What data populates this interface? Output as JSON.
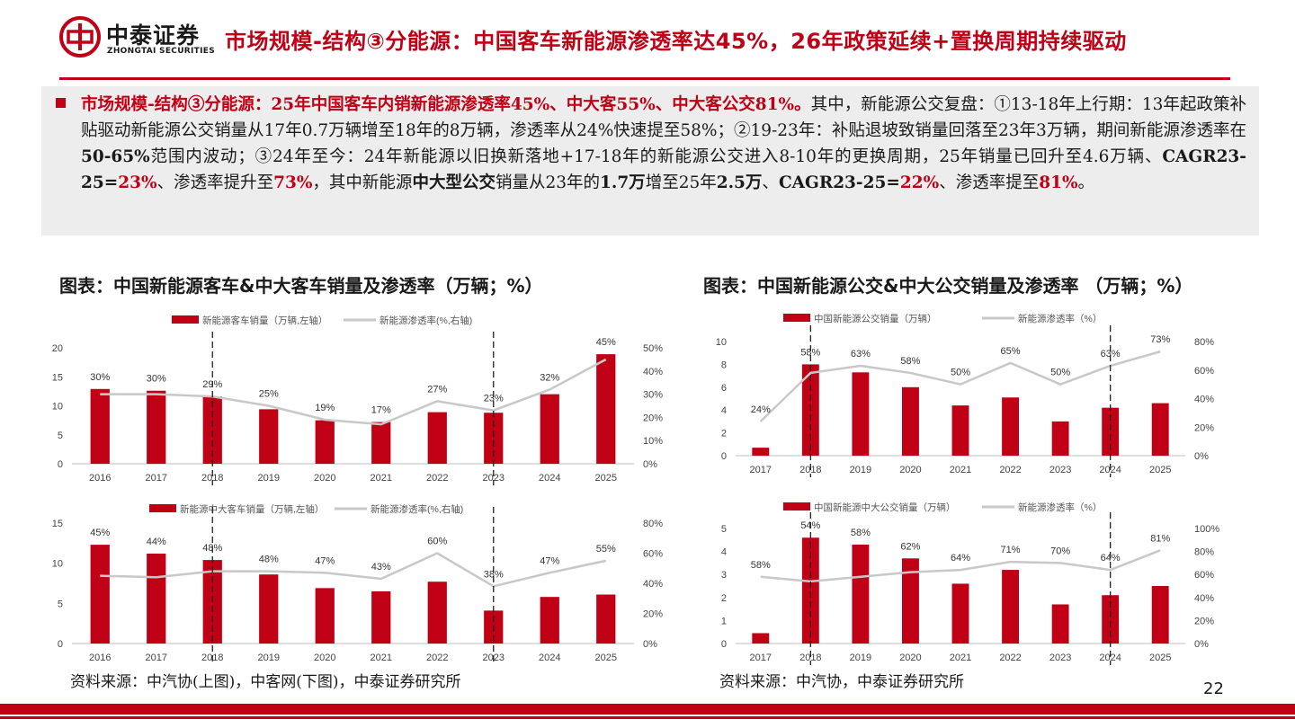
{
  "header": {
    "logo_cn": "中泰证券",
    "logo_en": "ZHONGTAI SECURITIES",
    "title": "市场规模-结构③分能源：中国客车新能源渗透率达45%，26年政策延续+置换周期持续驱动",
    "page_number": "22"
  },
  "summary": {
    "t1": "市场规模-结构③分能源：25年中国客车内销新能源渗透率45%、中大客55%、中大客公交81%。",
    "t2": "其中，新能源公交复盘：①13-18年上行期：13年起政策补贴驱动新能源公交销量从17年0.7万辆增至18年的8万辆，渗透率从24%快速提至58%；②19-23年：补贴退坡致销量回落至23年3万辆，期间新能源渗透率在",
    "t3": "50-65%",
    "t4": "范围内波动；③24年至今：24年新能源以旧换新落地+17-18年的新能源公交进入8-10年的更换周期，25年销量已回升至4.6万辆、",
    "t5": "CAGR23-25=",
    "t6": "23%",
    "t7": "、渗透率提升至",
    "t8": "73%",
    "t9": "，其中新能源",
    "t10": "中大型公交",
    "t11": "销量从23年的",
    "t12": "1.7万",
    "t13": "增至25年",
    "t14": "2.5万",
    "t15": "、",
    "t16": "CAGR23-25=",
    "t17": "22%",
    "t18": "、渗透率提至",
    "t19": "81%",
    "t20": "。"
  },
  "left_figure_title": "图表：中国新能源客车&中大客车销量及渗透率（万辆；%）",
  "right_figure_title": "图表：中国新能源公交&中大公交销量及渗透率 （万辆；%）",
  "left_source": "资料来源：中汽协(上图)，中客网(下图)，中泰证券研究所",
  "right_source": "资料来源：中汽协，中泰证券研究所",
  "colors": {
    "bar": "#c00015",
    "line": "#c8c8c8",
    "accent": "#c00015"
  },
  "chart_data": [
    {
      "type": "bar",
      "categories": [
        "2016",
        "2017",
        "2018",
        "2019",
        "2020",
        "2021",
        "2022",
        "2023",
        "2024",
        "2025"
      ],
      "series": [
        {
          "name": "新能源客车销量（万辆,左轴）",
          "kind": "bar",
          "values": [
            12.9,
            12.6,
            11.6,
            9.4,
            7.5,
            7.2,
            8.9,
            8.8,
            12.0,
            18.9
          ]
        },
        {
          "name": "新能源渗透率(%,右轴)",
          "kind": "line",
          "values": [
            30,
            30,
            29,
            25,
            19,
            17,
            27,
            23,
            32,
            45
          ]
        }
      ],
      "data_labels": [
        "30%",
        "30%",
        "29%",
        "25%",
        "19%",
        "17%",
        "27%",
        "23%",
        "32%",
        "45%"
      ],
      "ylim": [
        0,
        20
      ],
      "y_ticks": [
        0,
        5,
        10,
        15,
        20
      ],
      "y2lim": [
        0,
        50
      ],
      "y2_ticks": [
        "0%",
        "10%",
        "20%",
        "30%",
        "40%",
        "50%"
      ],
      "grid": false,
      "legend": "top"
    },
    {
      "type": "bar",
      "categories": [
        "2016",
        "2017",
        "2018",
        "2019",
        "2020",
        "2021",
        "2022",
        "2023",
        "2024",
        "2025"
      ],
      "series": [
        {
          "name": "新能源中大客车销量（万辆,左轴）",
          "kind": "bar",
          "values": [
            12.3,
            11.2,
            10.4,
            8.6,
            6.9,
            6.5,
            7.7,
            4.1,
            5.8,
            6.1
          ]
        },
        {
          "name": "新能源渗透率(%,右轴)",
          "kind": "line",
          "values": [
            45,
            44,
            48,
            48,
            47,
            43,
            60,
            38,
            47,
            55
          ]
        }
      ],
      "data_labels": [
        "45%",
        "44%",
        "48%",
        "48%",
        "47%",
        "43%",
        "60%",
        "38%",
        "47%",
        "55%"
      ],
      "ylim": [
        0,
        15
      ],
      "y_ticks": [
        0,
        5,
        10,
        15
      ],
      "y2lim": [
        0,
        80
      ],
      "y2_ticks": [
        "0%",
        "20%",
        "40%",
        "60%",
        "80%"
      ],
      "grid": false,
      "legend": "top"
    },
    {
      "type": "bar",
      "categories": [
        "2017",
        "2018",
        "2019",
        "2020",
        "2021",
        "2022",
        "2023",
        "2024",
        "2025"
      ],
      "series": [
        {
          "name": "中国新能源公交销量（万辆）",
          "kind": "bar",
          "values": [
            0.7,
            8.0,
            7.3,
            6.0,
            4.4,
            5.1,
            3.0,
            4.2,
            4.6
          ]
        },
        {
          "name": "新能源渗透率（%）",
          "kind": "line",
          "values": [
            24,
            58,
            63,
            58,
            50,
            65,
            50,
            63,
            73
          ]
        }
      ],
      "data_labels": [
        "24%",
        "58%",
        "63%",
        "58%",
        "50%",
        "65%",
        "50%",
        "63%",
        "73%"
      ],
      "ylim": [
        0,
        10
      ],
      "y_ticks": [
        0,
        2,
        4,
        6,
        8,
        10
      ],
      "y2lim": [
        0,
        80
      ],
      "y2_ticks": [
        "0%",
        "20%",
        "40%",
        "60%",
        "80%"
      ],
      "grid": false,
      "legend": "top"
    },
    {
      "type": "bar",
      "categories": [
        "2017",
        "2018",
        "2019",
        "2020",
        "2021",
        "2022",
        "2023",
        "2024",
        "2025"
      ],
      "series": [
        {
          "name": "中国新能源中大公交销量（万辆）",
          "kind": "bar",
          "values": [
            0.45,
            4.6,
            4.3,
            3.7,
            2.6,
            3.2,
            1.7,
            2.1,
            2.5
          ]
        },
        {
          "name": "新能源渗透率（%）",
          "kind": "line",
          "values": [
            58,
            54,
            58,
            62,
            64,
            71,
            70,
            64,
            81
          ]
        }
      ],
      "data_labels": [
        "58%",
        "54%",
        "58%",
        "62%",
        "64%",
        "71%",
        "70%",
        "64%",
        "81%"
      ],
      "ylim": [
        0,
        5
      ],
      "y_ticks": [
        0,
        1,
        2,
        3,
        4,
        5
      ],
      "y2lim": [
        0,
        100
      ],
      "y2_ticks": [
        "0%",
        "20%",
        "40%",
        "60%",
        "80%",
        "100%"
      ],
      "grid": false,
      "legend": "top"
    }
  ]
}
